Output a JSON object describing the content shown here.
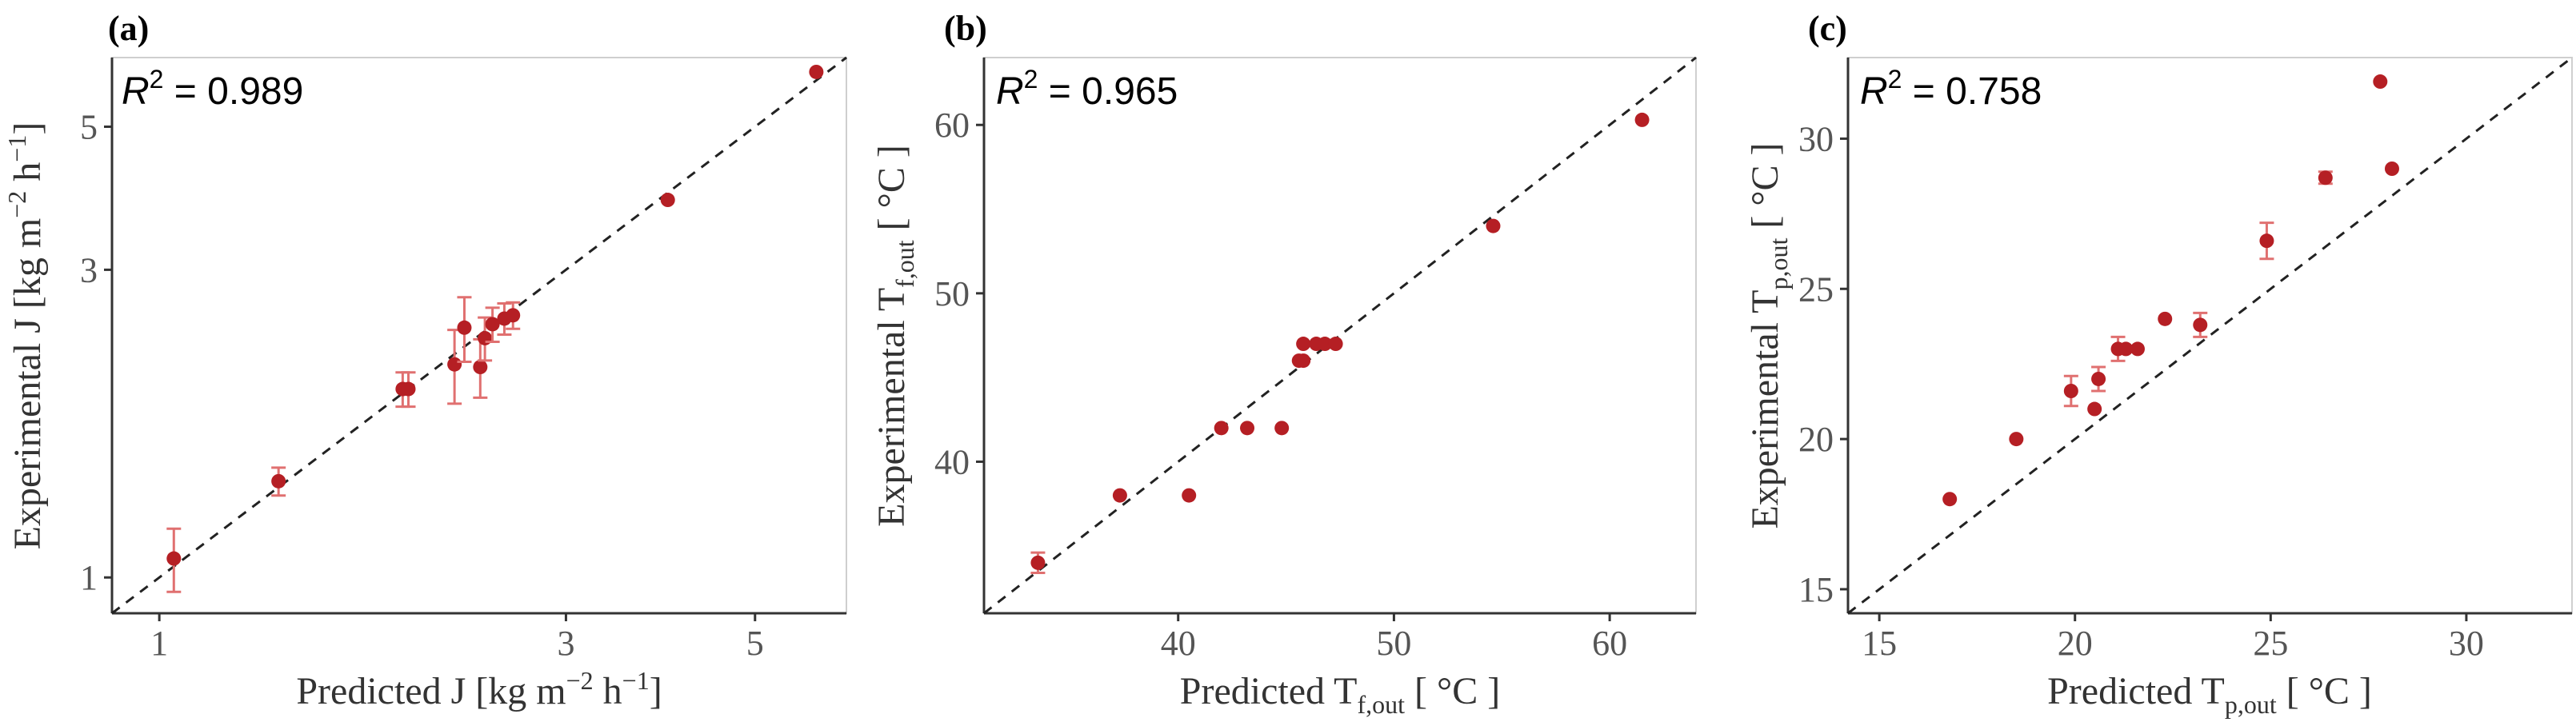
{
  "colors": {
    "point": "#b51f24",
    "errorbar": "#e07070",
    "reference": "#222222"
  },
  "chart_data": [
    {
      "panel": "(a)",
      "type": "scatter",
      "scale": "log",
      "xlabel": "Predicted J [kg m⁻² h⁻¹]",
      "ylabel": "Experimental J [kg m⁻² h⁻¹]",
      "r2_label": "R² = 0.989",
      "xlim": [
        0.88,
        6.4
      ],
      "ylim": [
        0.88,
        6.4
      ],
      "xticks": [
        1,
        3,
        5
      ],
      "yticks": [
        1,
        3,
        5
      ],
      "reference_line": "y = x",
      "points": [
        {
          "x": 1.04,
          "y": 1.07,
          "err": 0.12
        },
        {
          "x": 1.38,
          "y": 1.41,
          "err": 0.07
        },
        {
          "x": 1.93,
          "y": 1.96,
          "err": 0.12
        },
        {
          "x": 1.96,
          "y": 1.96,
          "err": 0.12
        },
        {
          "x": 2.22,
          "y": 2.14,
          "err": 0.28
        },
        {
          "x": 2.28,
          "y": 2.44,
          "err": 0.28
        },
        {
          "x": 2.38,
          "y": 2.12,
          "err": 0.22
        },
        {
          "x": 2.41,
          "y": 2.35,
          "err": 0.18
        },
        {
          "x": 2.46,
          "y": 2.47,
          "err": 0.15
        },
        {
          "x": 2.54,
          "y": 2.52,
          "err": 0.14
        },
        {
          "x": 2.6,
          "y": 2.55,
          "err": 0.12
        },
        {
          "x": 3.95,
          "y": 3.85,
          "err": 0
        },
        {
          "x": 5.9,
          "y": 6.08,
          "err": 0
        }
      ]
    },
    {
      "panel": "(b)",
      "type": "scatter",
      "scale": "linear",
      "xlabel": "Predicted T_f,out [ °C ]",
      "ylabel": "Experimental T_f,out [ °C ]",
      "r2_label": "R² = 0.965",
      "xlim": [
        31,
        64
      ],
      "ylim": [
        31,
        64
      ],
      "xticks": [
        40,
        50,
        60
      ],
      "yticks": [
        40,
        50,
        60
      ],
      "reference_line": "y = x",
      "points": [
        {
          "x": 33.5,
          "y": 34.0,
          "err": 0.6
        },
        {
          "x": 37.3,
          "y": 38.0,
          "err": 0
        },
        {
          "x": 40.5,
          "y": 38.0,
          "err": 0
        },
        {
          "x": 42.0,
          "y": 42.0,
          "err": 0
        },
        {
          "x": 43.2,
          "y": 42.0,
          "err": 0
        },
        {
          "x": 44.8,
          "y": 42.0,
          "err": 0
        },
        {
          "x": 45.6,
          "y": 46.0,
          "err": 0
        },
        {
          "x": 45.8,
          "y": 46.0,
          "err": 0
        },
        {
          "x": 45.8,
          "y": 47.0,
          "err": 0
        },
        {
          "x": 46.4,
          "y": 47.0,
          "err": 0
        },
        {
          "x": 46.8,
          "y": 47.0,
          "err": 0
        },
        {
          "x": 47.3,
          "y": 47.0,
          "err": 0
        },
        {
          "x": 54.6,
          "y": 54.0,
          "err": 0
        },
        {
          "x": 61.5,
          "y": 60.3,
          "err": 0
        }
      ]
    },
    {
      "panel": "(c)",
      "type": "scatter",
      "scale": "linear",
      "xlabel": "Predicted T_p,out [ °C ]",
      "ylabel": "Experimental T_p,out [ °C ]",
      "r2_label": "R² = 0.758",
      "xlim": [
        14.2,
        32.7
      ],
      "ylim": [
        14.2,
        32.7
      ],
      "xticks": [
        15,
        20,
        25,
        30
      ],
      "yticks": [
        15,
        20,
        25,
        30
      ],
      "reference_line": "y = x",
      "points": [
        {
          "x": 16.8,
          "y": 18.0,
          "err": 0
        },
        {
          "x": 18.5,
          "y": 20.0,
          "err": 0
        },
        {
          "x": 19.9,
          "y": 21.6,
          "err": 0.5
        },
        {
          "x": 20.5,
          "y": 21.0,
          "err": 0
        },
        {
          "x": 20.6,
          "y": 22.0,
          "err": 0.4
        },
        {
          "x": 21.1,
          "y": 23.0,
          "err": 0.4
        },
        {
          "x": 21.3,
          "y": 23.0,
          "err": 0
        },
        {
          "x": 21.6,
          "y": 23.0,
          "err": 0
        },
        {
          "x": 22.3,
          "y": 24.0,
          "err": 0
        },
        {
          "x": 23.2,
          "y": 23.8,
          "err": 0.4
        },
        {
          "x": 24.9,
          "y": 26.6,
          "err": 0.6
        },
        {
          "x": 26.4,
          "y": 28.7,
          "err": 0.2
        },
        {
          "x": 27.8,
          "y": 31.9,
          "err": 0
        },
        {
          "x": 28.1,
          "y": 29.0,
          "err": 0
        }
      ]
    }
  ]
}
